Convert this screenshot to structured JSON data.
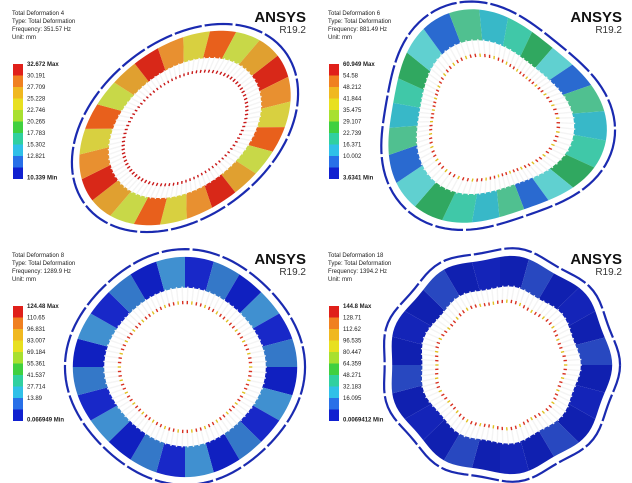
{
  "panels": [
    {
      "title": "Total Deformation 4",
      "type": "Type: Total Deformation",
      "frequency": "Frequency: 351.57 Hz",
      "unit": "Unit: mm",
      "brand": "ANSYS",
      "version": "R19.2",
      "legend": [
        "32.672 Max",
        "30.191",
        "27.709",
        "25.228",
        "22.746",
        "20.265",
        "17.783",
        "15.302",
        "12.821",
        "10.339 Min"
      ]
    },
    {
      "title": "Total Deformation 6",
      "type": "Type: Total Deformation",
      "frequency": "Frequency: 881.49 Hz",
      "unit": "Unit: mm",
      "brand": "ANSYS",
      "version": "R19.2",
      "legend": [
        "60.949 Max",
        "54.58",
        "48.212",
        "41.844",
        "35.475",
        "29.107",
        "22.739",
        "16.371",
        "10.002",
        "3.6341 Min"
      ]
    },
    {
      "title": "Total Deformation 8",
      "type": "Type: Total Deformation",
      "frequency": "Frequency: 1289.9 Hz",
      "unit": "Unit: mm",
      "brand": "ANSYS",
      "version": "R19.2",
      "legend": [
        "124.48 Max",
        "110.65",
        "96.831",
        "83.007",
        "69.184",
        "55.361",
        "41.537",
        "27.714",
        "13.89",
        "0.066949 Min"
      ]
    },
    {
      "title": "Total Deformation 18",
      "type": "Type: Total Deformation",
      "frequency": "Frequency: 1394.2 Hz",
      "unit": "Unit: mm",
      "brand": "ANSYS",
      "version": "R19.2",
      "legend": [
        "144.8 Max",
        "128.71",
        "112.62",
        "96.535",
        "80.447",
        "64.359",
        "48.271",
        "32.183",
        "16.095",
        "0.0069412 Min"
      ]
    }
  ]
}
